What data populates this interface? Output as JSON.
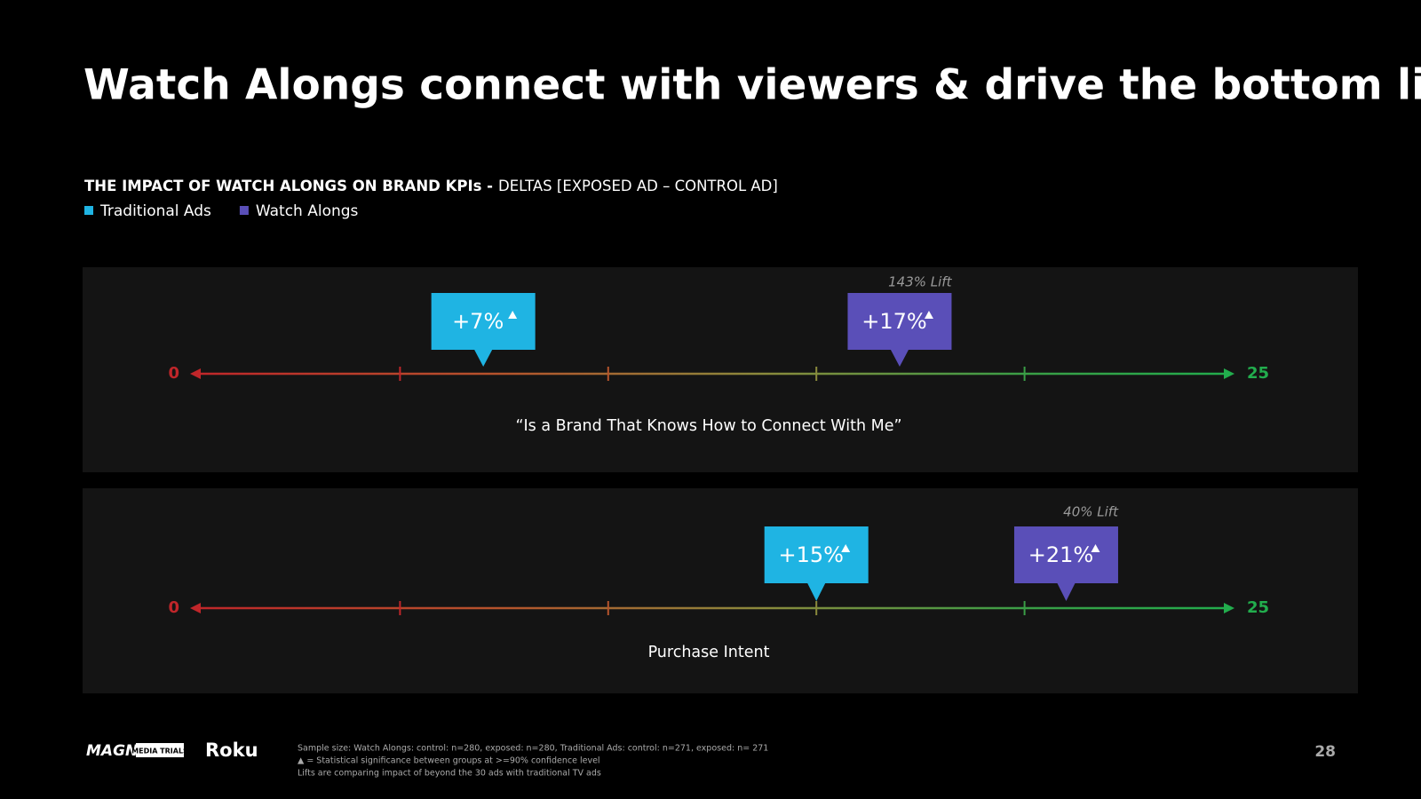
{
  "header": {
    "title": "Watch Alongs connect with viewers & drive the bottom line",
    "subtitle_bold": "THE IMPACT OF WATCH ALONGS ON BRAND KPIs -",
    "subtitle": "DELTAS [EXPOSED AD – CONTROL AD]"
  },
  "legend": [
    {
      "name": "Traditional Ads",
      "color": "#1fb4e3"
    },
    {
      "name": "Watch Alongs",
      "color": "#5a4fb8"
    }
  ],
  "chart_data": [
    {
      "type": "marker-line",
      "title": "“Is a Brand That Knows How to Connect With Me”",
      "xlim": [
        0,
        25
      ],
      "xticks": [
        0,
        25
      ],
      "minor_ticks": [
        5,
        10,
        15,
        20
      ],
      "series": [
        {
          "values": [
            7
          ],
          "value_labels": [
            "+7%"
          ]
        },
        {
          "values": [
            17
          ],
          "value_labels": [
            "+17%"
          ]
        }
      ],
      "annotation": "143% Lift"
    },
    {
      "type": "marker-line",
      "title": "Purchase Intent",
      "xlim": [
        0,
        25
      ],
      "xticks": [
        0,
        25
      ],
      "minor_ticks": [
        5,
        10,
        15,
        20
      ],
      "series": [
        {
          "values": [
            15
          ],
          "value_labels": [
            "+15%"
          ]
        },
        {
          "values": [
            21
          ],
          "value_labels": [
            "+21%"
          ]
        }
      ],
      "annotation": "40% Lift"
    }
  ],
  "footer": {
    "logos": [
      "MAGNA",
      "MEDIA TRIALS",
      "Roku"
    ],
    "notes": [
      "Sample size: Watch Alongs: control: n=280, exposed: n=280, Traditional Ads: control: n=271, exposed: n= 271",
      "▲ = Statistical significance between groups at >=90% confidence level",
      "Lifts are comparing impact of beyond the 30 ads with traditional TV ads"
    ],
    "page_number": "28"
  }
}
